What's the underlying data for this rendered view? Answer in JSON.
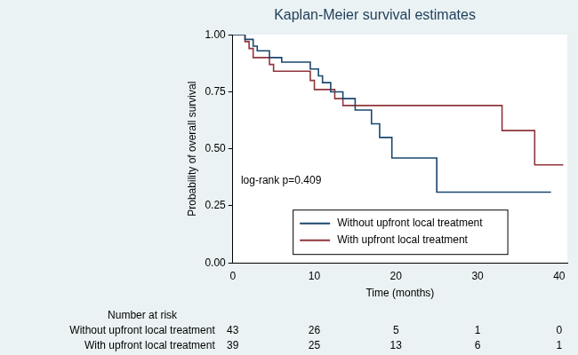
{
  "chart_data": {
    "type": "step",
    "title": "Kaplan-Meier survival estimates",
    "x_label": "Time (months)",
    "y_label": "Probability of overall survival",
    "xlim": [
      0,
      41
    ],
    "xticks": [
      0,
      10,
      20,
      30,
      40
    ],
    "ylim": [
      0,
      1
    ],
    "yticks": [
      {
        "value": 0,
        "label": "0.00"
      },
      {
        "value": 0.25,
        "label": "0.25"
      },
      {
        "value": 0.5,
        "label": "0.50"
      },
      {
        "value": 0.75,
        "label": "0.75"
      },
      {
        "value": 1,
        "label": "1.00"
      }
    ],
    "grid": false,
    "legend": "lower center",
    "annotations": [
      {
        "text": "log-rank p=0.409",
        "x": 1,
        "y": 0.36
      }
    ],
    "series": [
      {
        "name": "Without upfront local treatment",
        "color": "#1a476f",
        "line_style": "solid",
        "x": [
          0,
          1.5,
          2.5,
          3,
          4.5,
          6,
          9.5,
          10.5,
          11,
          12,
          13.5,
          15,
          17,
          18,
          19.5,
          25,
          39
        ],
        "values": [
          1,
          0.98,
          0.95,
          0.93,
          0.9,
          0.88,
          0.85,
          0.82,
          0.79,
          0.75,
          0.72,
          0.67,
          0.61,
          0.55,
          0.46,
          0.31,
          0.31
        ]
      },
      {
        "name": "With upfront local treatment",
        "color": "#90353b",
        "line_style": "solid",
        "x": [
          0,
          1.5,
          2,
          2.5,
          4.5,
          5,
          9.5,
          10,
          12.5,
          13.5,
          33,
          37,
          40.5
        ],
        "values": [
          1,
          0.97,
          0.94,
          0.9,
          0.87,
          0.84,
          0.8,
          0.76,
          0.72,
          0.69,
          0.58,
          0.43,
          0.43
        ]
      }
    ],
    "risk_table": {
      "title": "Number at risk",
      "times": [
        0,
        10,
        20,
        30,
        40
      ],
      "rows": [
        {
          "name": "Without upfront local treatment",
          "values": [
            43,
            26,
            5,
            1,
            0
          ]
        },
        {
          "name": "With upfront local treatment",
          "values": [
            39,
            25,
            13,
            6,
            1
          ]
        }
      ]
    }
  }
}
